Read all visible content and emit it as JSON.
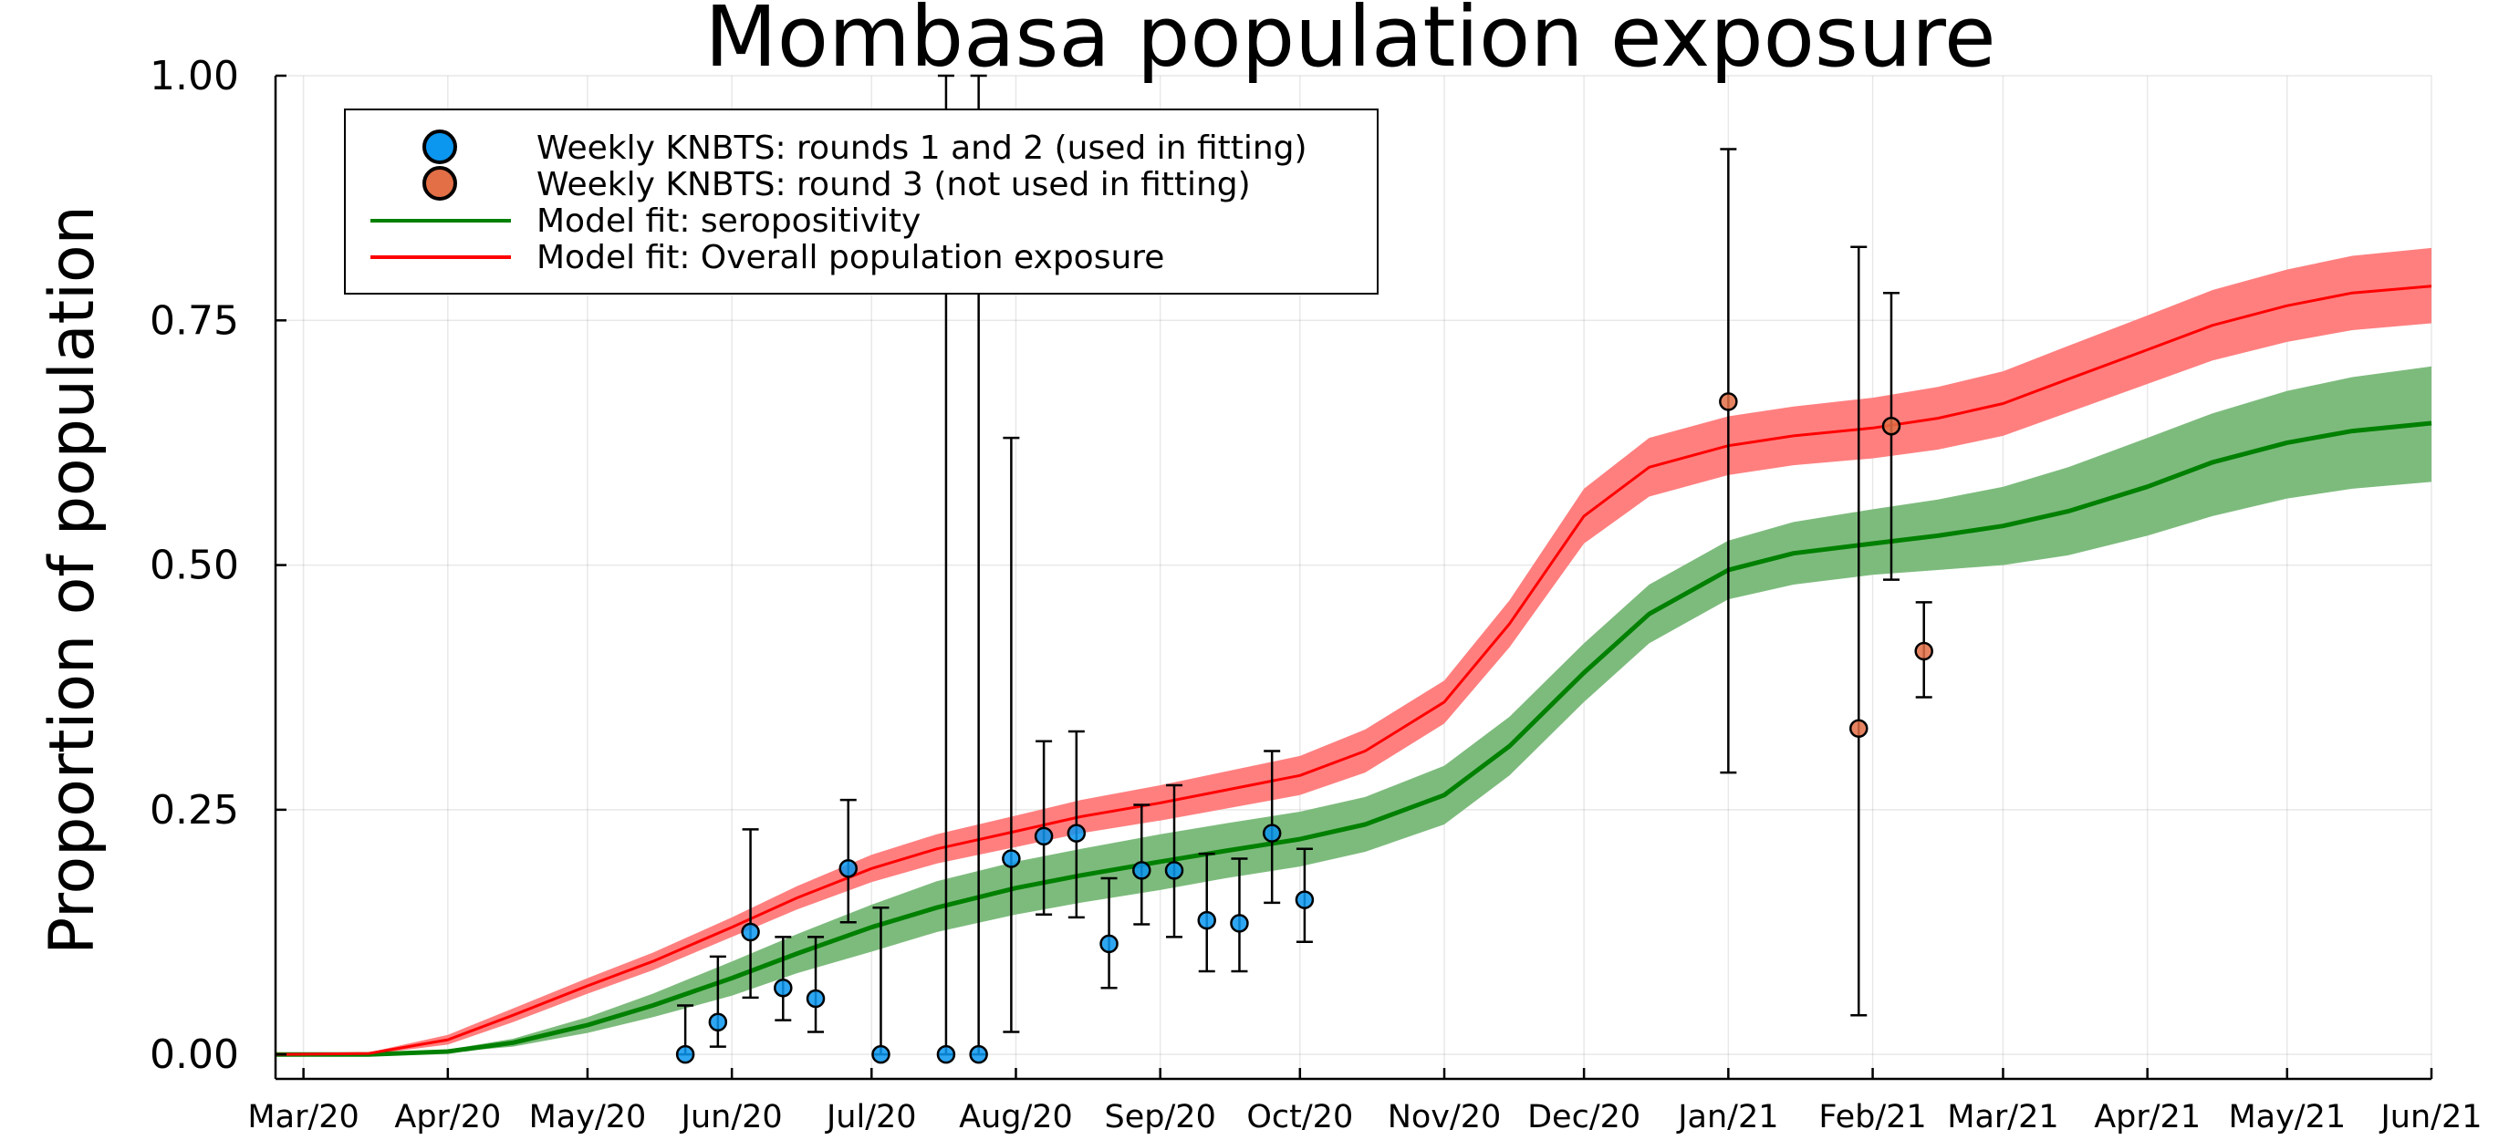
{
  "chart_data": {
    "type": "line",
    "title": "Mombasa population exposure",
    "xlabel": "",
    "ylabel": "Proportion of population",
    "x_tick_labels": [
      "Mar/20",
      "Apr/20",
      "May/20",
      "Jun/20",
      "Jul/20",
      "Aug/20",
      "Sep/20",
      "Oct/20",
      "Nov/20",
      "Dec/20",
      "Jan/21",
      "Feb/21",
      "Mar/21",
      "Apr/21",
      "May/21",
      "Jun/21"
    ],
    "x_tick_dates": [
      "2020-03-01",
      "2020-04-01",
      "2020-05-01",
      "2020-06-01",
      "2020-07-01",
      "2020-08-01",
      "2020-09-01",
      "2020-10-01",
      "2020-11-01",
      "2020-12-01",
      "2021-01-01",
      "2021-02-01",
      "2021-03-01",
      "2021-04-01",
      "2021-05-01",
      "2021-06-01"
    ],
    "xlim": [
      "2020-02-24",
      "2021-06-01"
    ],
    "y_tick_labels": [
      "0.00",
      "0.25",
      "0.50",
      "0.75",
      "1.00"
    ],
    "y_ticks": [
      0,
      0.25,
      0.5,
      0.75,
      1.0
    ],
    "ylim": [
      -0.025,
      1.0
    ],
    "grid": true,
    "legend_position": "top-left",
    "colors": {
      "round12": "#0b96f0",
      "round3": "#e26f46",
      "seropositivity": "#008000",
      "seropositivity_band": "#7dbb7d",
      "exposure": "#ff0000",
      "exposure_band": "#ff7f7f"
    },
    "series": [
      {
        "name": "Weekly KNBTS: rounds 1 and 2 (used in fitting)",
        "kind": "scatter",
        "points": [
          {
            "x": "2020-05-22",
            "y": 0.0,
            "lo": 0.0,
            "hi": 0.05
          },
          {
            "x": "2020-05-29",
            "y": 0.033,
            "lo": 0.008,
            "hi": 0.1
          },
          {
            "x": "2020-06-05",
            "y": 0.125,
            "lo": 0.058,
            "hi": 0.23
          },
          {
            "x": "2020-06-12",
            "y": 0.068,
            "lo": 0.035,
            "hi": 0.12
          },
          {
            "x": "2020-06-19",
            "y": 0.057,
            "lo": 0.023,
            "hi": 0.12
          },
          {
            "x": "2020-06-26",
            "y": 0.19,
            "lo": 0.135,
            "hi": 0.26
          },
          {
            "x": "2020-07-03",
            "y": 0.0,
            "lo": 0.0,
            "hi": 0.15
          },
          {
            "x": "2020-07-17",
            "y": 0.0,
            "lo": 0.0,
            "hi": 1.0
          },
          {
            "x": "2020-07-24",
            "y": 0.0,
            "lo": 0.0,
            "hi": 1.0
          },
          {
            "x": "2020-07-31",
            "y": 0.2,
            "lo": 0.023,
            "hi": 0.63
          },
          {
            "x": "2020-08-07",
            "y": 0.223,
            "lo": 0.143,
            "hi": 0.32
          },
          {
            "x": "2020-08-14",
            "y": 0.226,
            "lo": 0.14,
            "hi": 0.33
          },
          {
            "x": "2020-08-21",
            "y": 0.113,
            "lo": 0.068,
            "hi": 0.18
          },
          {
            "x": "2020-08-28",
            "y": 0.188,
            "lo": 0.133,
            "hi": 0.255
          },
          {
            "x": "2020-09-04",
            "y": 0.188,
            "lo": 0.12,
            "hi": 0.275
          },
          {
            "x": "2020-09-11",
            "y": 0.137,
            "lo": 0.085,
            "hi": 0.205
          },
          {
            "x": "2020-09-18",
            "y": 0.134,
            "lo": 0.085,
            "hi": 0.2
          },
          {
            "x": "2020-09-25",
            "y": 0.226,
            "lo": 0.155,
            "hi": 0.31
          },
          {
            "x": "2020-10-02",
            "y": 0.158,
            "lo": 0.115,
            "hi": 0.21
          }
        ]
      },
      {
        "name": "Weekly KNBTS: round 3 (not used in fitting)",
        "kind": "scatter",
        "points": [
          {
            "x": "2021-01-01",
            "y": 0.667,
            "lo": 0.288,
            "hi": 0.925
          },
          {
            "x": "2021-01-29",
            "y": 0.333,
            "lo": 0.04,
            "hi": 0.825
          },
          {
            "x": "2021-02-05",
            "y": 0.642,
            "lo": 0.485,
            "hi": 0.778
          },
          {
            "x": "2021-02-12",
            "y": 0.412,
            "lo": 0.365,
            "hi": 0.462
          }
        ]
      },
      {
        "name": "Model fit: seropositivity",
        "kind": "line",
        "points": [
          {
            "x": "2020-02-24",
            "y": 0.0,
            "lo": 0.0,
            "hi": 0.0
          },
          {
            "x": "2020-03-15",
            "y": 0.0,
            "lo": 0.0,
            "hi": 0.0
          },
          {
            "x": "2020-04-01",
            "y": 0.003,
            "lo": 0.002,
            "hi": 0.005
          },
          {
            "x": "2020-04-15",
            "y": 0.012,
            "lo": 0.008,
            "hi": 0.016
          },
          {
            "x": "2020-05-01",
            "y": 0.03,
            "lo": 0.022,
            "hi": 0.038
          },
          {
            "x": "2020-05-15",
            "y": 0.05,
            "lo": 0.038,
            "hi": 0.062
          },
          {
            "x": "2020-06-01",
            "y": 0.078,
            "lo": 0.06,
            "hi": 0.095
          },
          {
            "x": "2020-06-15",
            "y": 0.103,
            "lo": 0.083,
            "hi": 0.123
          },
          {
            "x": "2020-07-01",
            "y": 0.13,
            "lo": 0.105,
            "hi": 0.153
          },
          {
            "x": "2020-07-15",
            "y": 0.15,
            "lo": 0.125,
            "hi": 0.177
          },
          {
            "x": "2020-08-01",
            "y": 0.17,
            "lo": 0.143,
            "hi": 0.197
          },
          {
            "x": "2020-08-15",
            "y": 0.183,
            "lo": 0.155,
            "hi": 0.21
          },
          {
            "x": "2020-09-01",
            "y": 0.197,
            "lo": 0.168,
            "hi": 0.225
          },
          {
            "x": "2020-09-15",
            "y": 0.208,
            "lo": 0.18,
            "hi": 0.236
          },
          {
            "x": "2020-10-01",
            "y": 0.22,
            "lo": 0.192,
            "hi": 0.248
          },
          {
            "x": "2020-10-15",
            "y": 0.235,
            "lo": 0.207,
            "hi": 0.263
          },
          {
            "x": "2020-11-01",
            "y": 0.265,
            "lo": 0.235,
            "hi": 0.295
          },
          {
            "x": "2020-11-15",
            "y": 0.315,
            "lo": 0.285,
            "hi": 0.345
          },
          {
            "x": "2020-12-01",
            "y": 0.39,
            "lo": 0.36,
            "hi": 0.42
          },
          {
            "x": "2020-12-15",
            "y": 0.45,
            "lo": 0.42,
            "hi": 0.48
          },
          {
            "x": "2021-01-01",
            "y": 0.495,
            "lo": 0.465,
            "hi": 0.525
          },
          {
            "x": "2021-01-15",
            "y": 0.512,
            "lo": 0.48,
            "hi": 0.544
          },
          {
            "x": "2021-02-01",
            "y": 0.522,
            "lo": 0.49,
            "hi": 0.557
          },
          {
            "x": "2021-02-15",
            "y": 0.53,
            "lo": 0.495,
            "hi": 0.567
          },
          {
            "x": "2021-03-01",
            "y": 0.54,
            "lo": 0.5,
            "hi": 0.58
          },
          {
            "x": "2021-03-15",
            "y": 0.555,
            "lo": 0.51,
            "hi": 0.6
          },
          {
            "x": "2021-04-01",
            "y": 0.58,
            "lo": 0.53,
            "hi": 0.63
          },
          {
            "x": "2021-04-15",
            "y": 0.605,
            "lo": 0.55,
            "hi": 0.655
          },
          {
            "x": "2021-05-01",
            "y": 0.625,
            "lo": 0.568,
            "hi": 0.678
          },
          {
            "x": "2021-05-15",
            "y": 0.637,
            "lo": 0.578,
            "hi": 0.692
          },
          {
            "x": "2021-06-01",
            "y": 0.645,
            "lo": 0.585,
            "hi": 0.703
          }
        ]
      },
      {
        "name": "Model fit: Overall population exposure",
        "kind": "line",
        "points": [
          {
            "x": "2020-02-24",
            "y": 0.0,
            "lo": 0.0,
            "hi": 0.0
          },
          {
            "x": "2020-03-15",
            "y": 0.001,
            "lo": 0.0,
            "hi": 0.002
          },
          {
            "x": "2020-04-01",
            "y": 0.015,
            "lo": 0.01,
            "hi": 0.02
          },
          {
            "x": "2020-04-15",
            "y": 0.04,
            "lo": 0.033,
            "hi": 0.047
          },
          {
            "x": "2020-05-01",
            "y": 0.07,
            "lo": 0.062,
            "hi": 0.078
          },
          {
            "x": "2020-05-15",
            "y": 0.095,
            "lo": 0.086,
            "hi": 0.104
          },
          {
            "x": "2020-06-01",
            "y": 0.13,
            "lo": 0.12,
            "hi": 0.14
          },
          {
            "x": "2020-06-15",
            "y": 0.16,
            "lo": 0.148,
            "hi": 0.172
          },
          {
            "x": "2020-07-01",
            "y": 0.19,
            "lo": 0.176,
            "hi": 0.204
          },
          {
            "x": "2020-07-15",
            "y": 0.21,
            "lo": 0.195,
            "hi": 0.225
          },
          {
            "x": "2020-08-01",
            "y": 0.228,
            "lo": 0.212,
            "hi": 0.244
          },
          {
            "x": "2020-08-15",
            "y": 0.243,
            "lo": 0.226,
            "hi": 0.26
          },
          {
            "x": "2020-09-01",
            "y": 0.257,
            "lo": 0.239,
            "hi": 0.275
          },
          {
            "x": "2020-09-15",
            "y": 0.27,
            "lo": 0.251,
            "hi": 0.289
          },
          {
            "x": "2020-10-01",
            "y": 0.285,
            "lo": 0.265,
            "hi": 0.305
          },
          {
            "x": "2020-10-15",
            "y": 0.31,
            "lo": 0.288,
            "hi": 0.332
          },
          {
            "x": "2020-11-01",
            "y": 0.36,
            "lo": 0.338,
            "hi": 0.382
          },
          {
            "x": "2020-11-15",
            "y": 0.44,
            "lo": 0.416,
            "hi": 0.464
          },
          {
            "x": "2020-12-01",
            "y": 0.55,
            "lo": 0.522,
            "hi": 0.578
          },
          {
            "x": "2020-12-15",
            "y": 0.6,
            "lo": 0.57,
            "hi": 0.63
          },
          {
            "x": "2021-01-01",
            "y": 0.622,
            "lo": 0.592,
            "hi": 0.652
          },
          {
            "x": "2021-01-15",
            "y": 0.632,
            "lo": 0.602,
            "hi": 0.662
          },
          {
            "x": "2021-02-01",
            "y": 0.64,
            "lo": 0.609,
            "hi": 0.671
          },
          {
            "x": "2021-02-15",
            "y": 0.65,
            "lo": 0.618,
            "hi": 0.682
          },
          {
            "x": "2021-03-01",
            "y": 0.665,
            "lo": 0.632,
            "hi": 0.698
          },
          {
            "x": "2021-03-15",
            "y": 0.69,
            "lo": 0.656,
            "hi": 0.724
          },
          {
            "x": "2021-04-01",
            "y": 0.72,
            "lo": 0.685,
            "hi": 0.755
          },
          {
            "x": "2021-04-15",
            "y": 0.745,
            "lo": 0.709,
            "hi": 0.781
          },
          {
            "x": "2021-05-01",
            "y": 0.765,
            "lo": 0.728,
            "hi": 0.802
          },
          {
            "x": "2021-05-15",
            "y": 0.778,
            "lo": 0.74,
            "hi": 0.816
          },
          {
            "x": "2021-06-01",
            "y": 0.785,
            "lo": 0.747,
            "hi": 0.824
          }
        ]
      }
    ]
  }
}
